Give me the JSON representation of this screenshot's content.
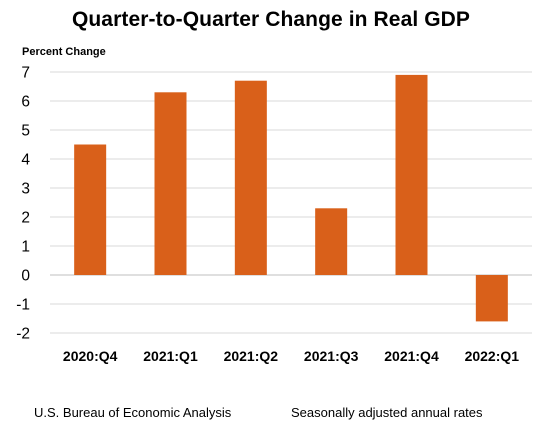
{
  "chart_data": {
    "type": "bar",
    "title": "Quarter-to-Quarter Change in Real GDP",
    "ylabel": "Percent Change",
    "xlabel": "",
    "categories": [
      "2020:Q4",
      "2021:Q1",
      "2021:Q2",
      "2021:Q3",
      "2021:Q4",
      "2022:Q1"
    ],
    "values": [
      4.5,
      6.3,
      6.7,
      2.3,
      6.9,
      -1.6
    ],
    "ylim": [
      -2,
      7
    ],
    "yticks": [
      "7",
      "6",
      "5",
      "4",
      "3",
      "2",
      "1",
      "0",
      "-1",
      "-2"
    ],
    "grid": true,
    "legend": "none",
    "bar_color": "#d9601a",
    "grid_color": "#d9d9d9"
  },
  "footer": {
    "source": "U.S. Bureau of Economic Analysis",
    "note": "Seasonally adjusted annual rates"
  }
}
